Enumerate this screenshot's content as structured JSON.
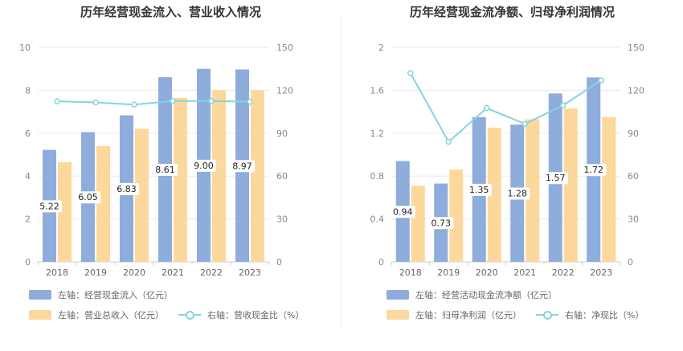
{
  "chart_data": [
    {
      "type": "bar",
      "title": "历年经营现金流入、营业收入情况",
      "categories": [
        "2018",
        "2019",
        "2020",
        "2021",
        "2022",
        "2023"
      ],
      "series": [
        {
          "name": "左轴：经营现金流入（亿元）",
          "axis": "left",
          "type": "bar",
          "color": "#8eacdc",
          "values": [
            5.22,
            6.05,
            6.83,
            8.61,
            9.0,
            8.97
          ],
          "labels": [
            "5.22",
            "6.05",
            "6.83",
            "8.61",
            "9.00",
            "8.97"
          ]
        },
        {
          "name": "左轴：营业总收入（亿元）",
          "axis": "left",
          "type": "bar",
          "color": "#fcd89c",
          "values": [
            4.65,
            5.4,
            6.2,
            7.65,
            8.0,
            8.0
          ]
        },
        {
          "name": "右轴：营收现金比（%）",
          "axis": "right",
          "type": "line",
          "color": "#86d4dc",
          "values": [
            112.3,
            111.5,
            110.0,
            112.5,
            112.5,
            112.0
          ]
        }
      ],
      "y_left": {
        "min": 0,
        "max": 10,
        "ticks": [
          "0",
          "2",
          "4",
          "6",
          "8",
          "10"
        ]
      },
      "y_right": {
        "min": 0,
        "max": 150,
        "ticks": [
          "0",
          "30",
          "60",
          "90",
          "120",
          "150"
        ]
      },
      "legend": [
        "左轴：经营现金流入（亿元）",
        "左轴：营业总收入（亿元）",
        "右轴：营收现金比（%）"
      ]
    },
    {
      "type": "bar",
      "title": "历年经营现金流净额、归母净利润情况",
      "categories": [
        "2018",
        "2019",
        "2020",
        "2021",
        "2022",
        "2023"
      ],
      "series": [
        {
          "name": "左轴：经营活动现金流净额（亿元）",
          "axis": "left",
          "type": "bar",
          "color": "#8eacdc",
          "values": [
            0.94,
            0.73,
            1.35,
            1.28,
            1.57,
            1.72
          ],
          "labels": [
            "0.94",
            "0.73",
            "1.35",
            "1.28",
            "1.57",
            "1.72"
          ]
        },
        {
          "name": "左轴：归母净利润（亿元）",
          "axis": "left",
          "type": "bar",
          "color": "#fcd89c",
          "values": [
            0.71,
            0.86,
            1.25,
            1.33,
            1.43,
            1.35
          ]
        },
        {
          "name": "右轴：净现比（%）",
          "axis": "right",
          "type": "line",
          "color": "#86d4dc",
          "values": [
            132.0,
            84.0,
            107.5,
            96.5,
            109.5,
            127.0
          ]
        }
      ],
      "y_left": {
        "min": 0,
        "max": 2,
        "ticks": [
          "0",
          "0.4",
          "0.8",
          "1.2",
          "1.6",
          "2"
        ]
      },
      "y_right": {
        "min": 0,
        "max": 150,
        "ticks": [
          "0",
          "30",
          "60",
          "90",
          "120",
          "150"
        ]
      },
      "legend": [
        "左轴：经营活动现金流净额（亿元）",
        "左轴：归母净利润（亿元）",
        "右轴：净现比（%）"
      ]
    }
  ]
}
